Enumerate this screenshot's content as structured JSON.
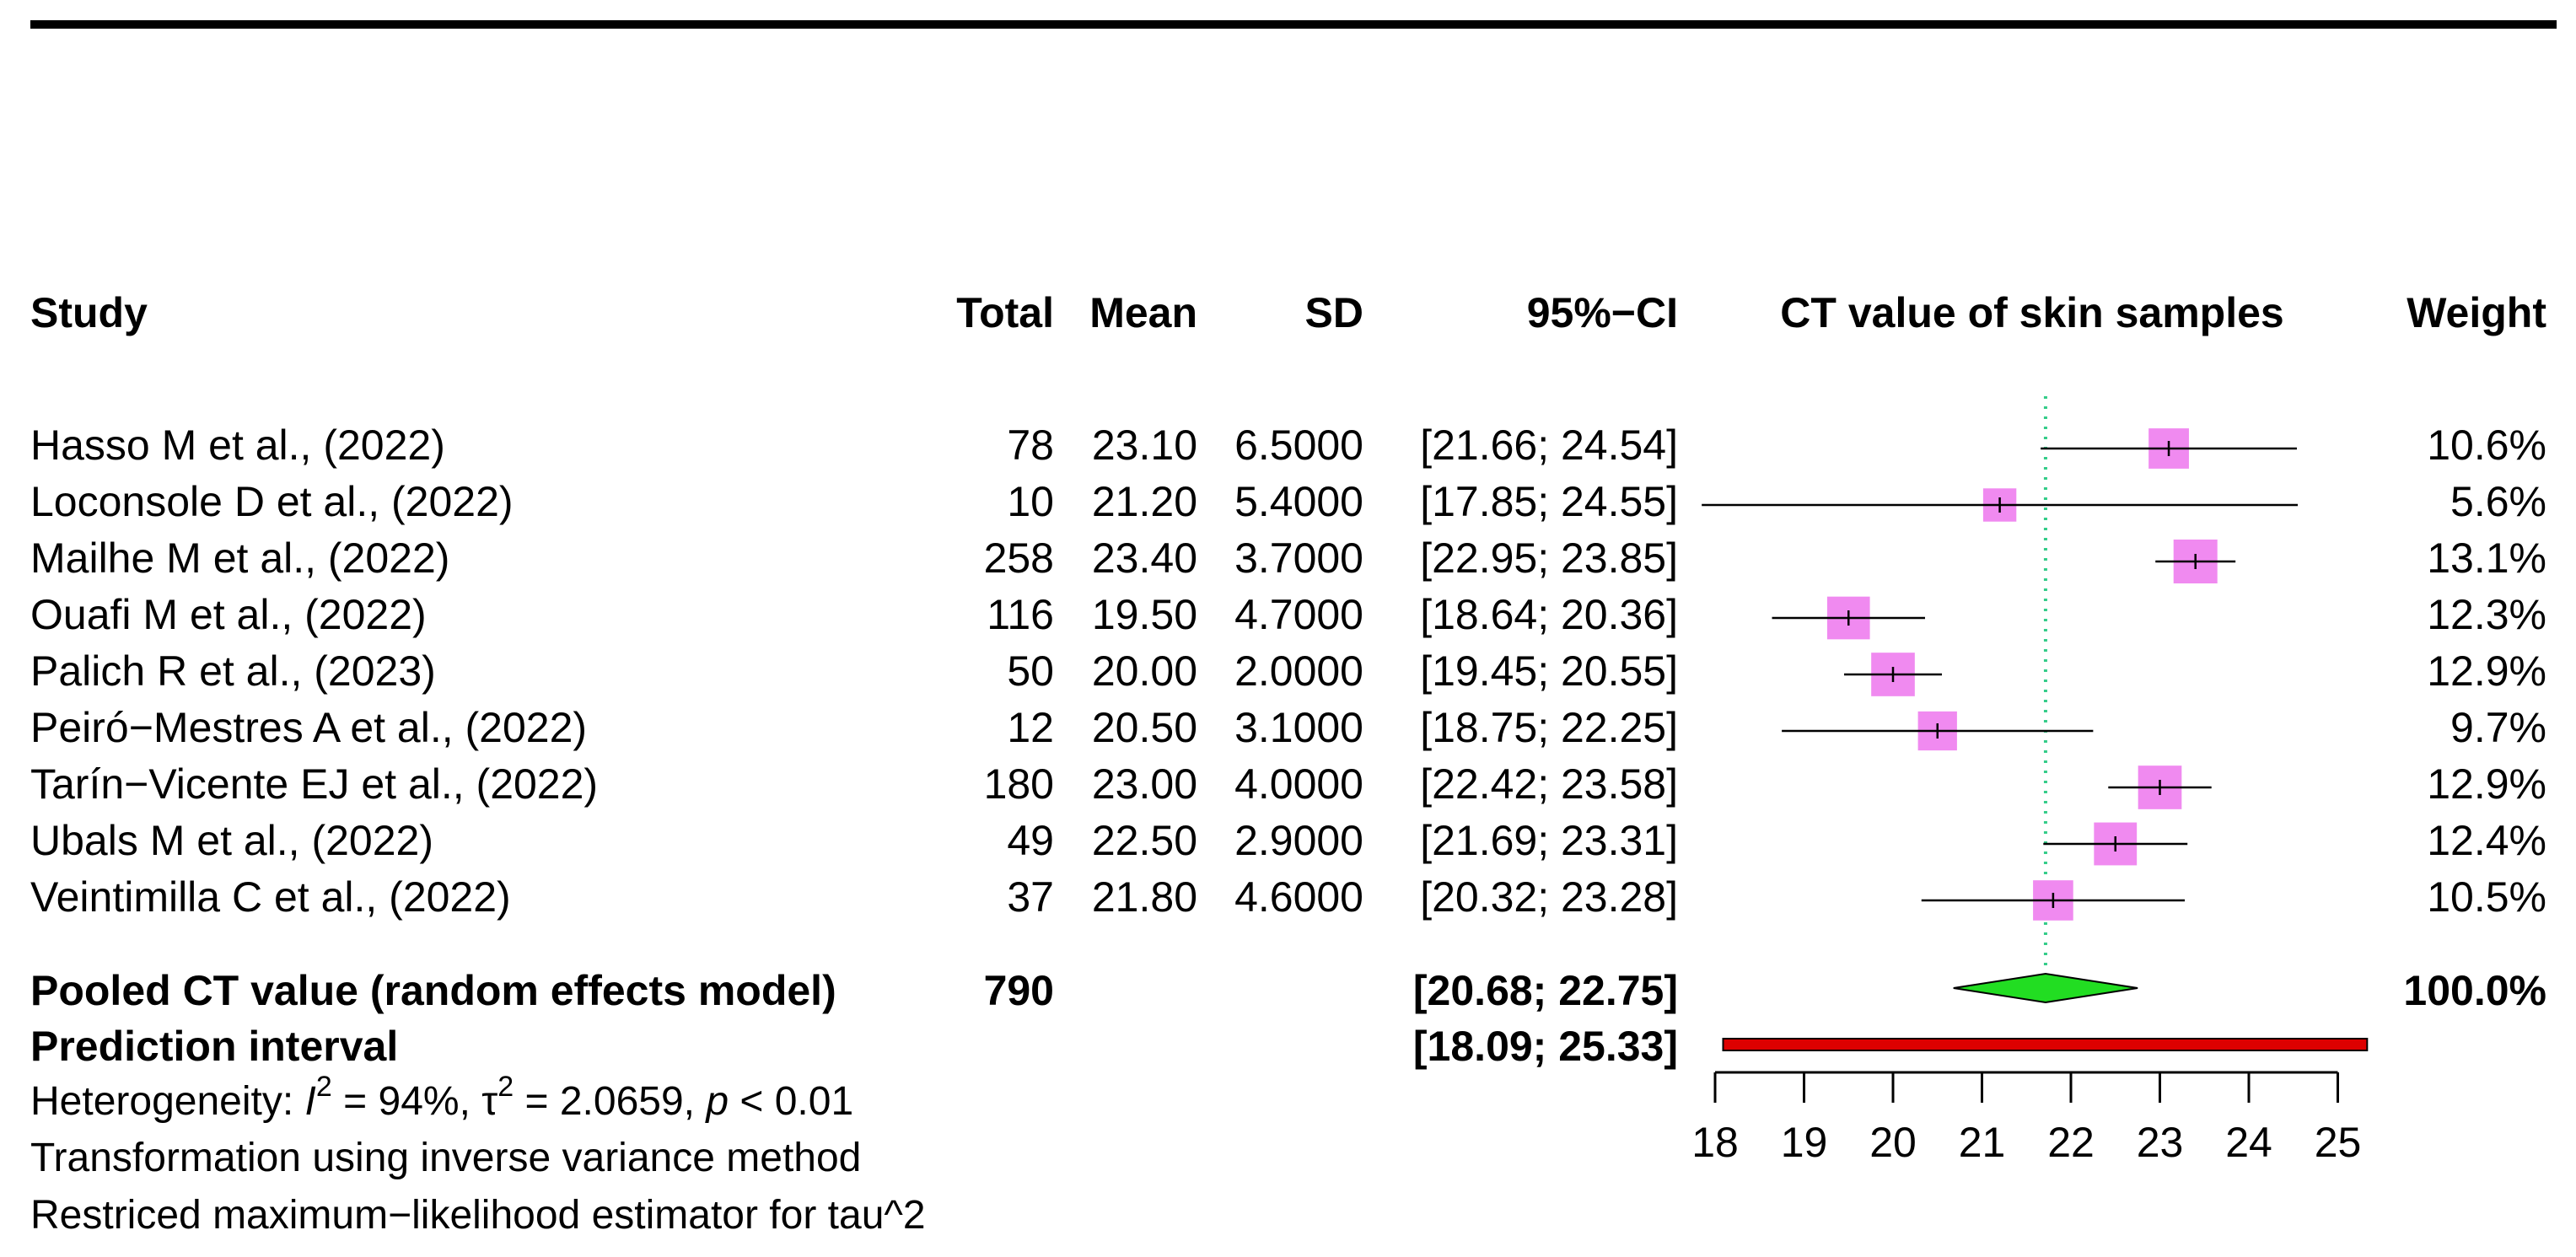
{
  "chart_data": {
    "type": "forest",
    "columns": {
      "study": "Study",
      "total": "Total",
      "mean": "Mean",
      "sd": "SD",
      "ci": "95%−CI",
      "plot": "CT value of skin samples",
      "weight": "Weight"
    },
    "studies": [
      {
        "label": "Hasso M et al., (2022)",
        "total": "78",
        "mean": "23.10",
        "sd": "6.5000",
        "ci": "[21.66; 24.54]",
        "weight": "10.6%",
        "estimate": 23.1,
        "lower": 21.66,
        "upper": 24.54,
        "w": 10.6
      },
      {
        "label": "Loconsole D et al., (2022)",
        "total": "10",
        "mean": "21.20",
        "sd": "5.4000",
        "ci": "[17.85; 24.55]",
        "weight": "5.6%",
        "estimate": 21.2,
        "lower": 17.85,
        "upper": 24.55,
        "w": 5.6
      },
      {
        "label": "Mailhe M et al., (2022)",
        "total": "258",
        "mean": "23.40",
        "sd": "3.7000",
        "ci": "[22.95; 23.85]",
        "weight": "13.1%",
        "estimate": 23.4,
        "lower": 22.95,
        "upper": 23.85,
        "w": 13.1
      },
      {
        "label": "Ouafi M et al., (2022)",
        "total": "116",
        "mean": "19.50",
        "sd": "4.7000",
        "ci": "[18.64; 20.36]",
        "weight": "12.3%",
        "estimate": 19.5,
        "lower": 18.64,
        "upper": 20.36,
        "w": 12.3
      },
      {
        "label": "Palich R et al., (2023)",
        "total": "50",
        "mean": "20.00",
        "sd": "2.0000",
        "ci": "[19.45; 20.55]",
        "weight": "12.9%",
        "estimate": 20.0,
        "lower": 19.45,
        "upper": 20.55,
        "w": 12.9
      },
      {
        "label": "Peiró−Mestres A et al., (2022)",
        "total": "12",
        "mean": "20.50",
        "sd": "3.1000",
        "ci": "[18.75; 22.25]",
        "weight": "9.7%",
        "estimate": 20.5,
        "lower": 18.75,
        "upper": 22.25,
        "w": 9.7
      },
      {
        "label": "Tarín−Vicente EJ et al., (2022)",
        "total": "180",
        "mean": "23.00",
        "sd": "4.0000",
        "ci": "[22.42; 23.58]",
        "weight": "12.9%",
        "estimate": 23.0,
        "lower": 22.42,
        "upper": 23.58,
        "w": 12.9
      },
      {
        "label": "Ubals M et al., (2022)",
        "total": "49",
        "mean": "22.50",
        "sd": "2.9000",
        "ci": "[21.69; 23.31]",
        "weight": "12.4%",
        "estimate": 22.5,
        "lower": 21.69,
        "upper": 23.31,
        "w": 12.4
      },
      {
        "label": "Veintimilla C et al., (2022)",
        "total": "37",
        "mean": "21.80",
        "sd": "4.6000",
        "ci": "[20.32; 23.28]",
        "weight": "10.5%",
        "estimate": 21.8,
        "lower": 20.32,
        "upper": 23.28,
        "w": 10.5
      }
    ],
    "pooled": {
      "label": "Pooled CT value (random effects model)",
      "total": "790",
      "ci": "[20.68; 22.75]",
      "weight": "100.0%",
      "estimate": 21.715,
      "lower": 20.68,
      "upper": 22.75
    },
    "prediction": {
      "label": "Prediction interval",
      "ci": "[18.09; 25.33]",
      "lower": 18.09,
      "upper": 25.33
    },
    "notes": {
      "heterogeneity_prefix": "Heterogeneity: ",
      "i2_symbol": "I",
      "i2_value": " = 94%, ",
      "tau_symbol": "τ",
      "tau_value": " = 2.0659, ",
      "p_symbol": "p",
      "p_value": " < 0.01",
      "transformation": "Transformation using inverse variance method",
      "estimator": "Restriced maximum−likelihood estimator for tau^2"
    },
    "x_axis": {
      "ticks": [
        18,
        19,
        20,
        21,
        22,
        23,
        24,
        25
      ],
      "range": [
        18,
        25
      ]
    },
    "colors": {
      "square": "#f08af0",
      "diamond": "#22dd22",
      "prediction": "#dd0000",
      "reference_line": "#33cc88",
      "line": "#000000"
    }
  }
}
